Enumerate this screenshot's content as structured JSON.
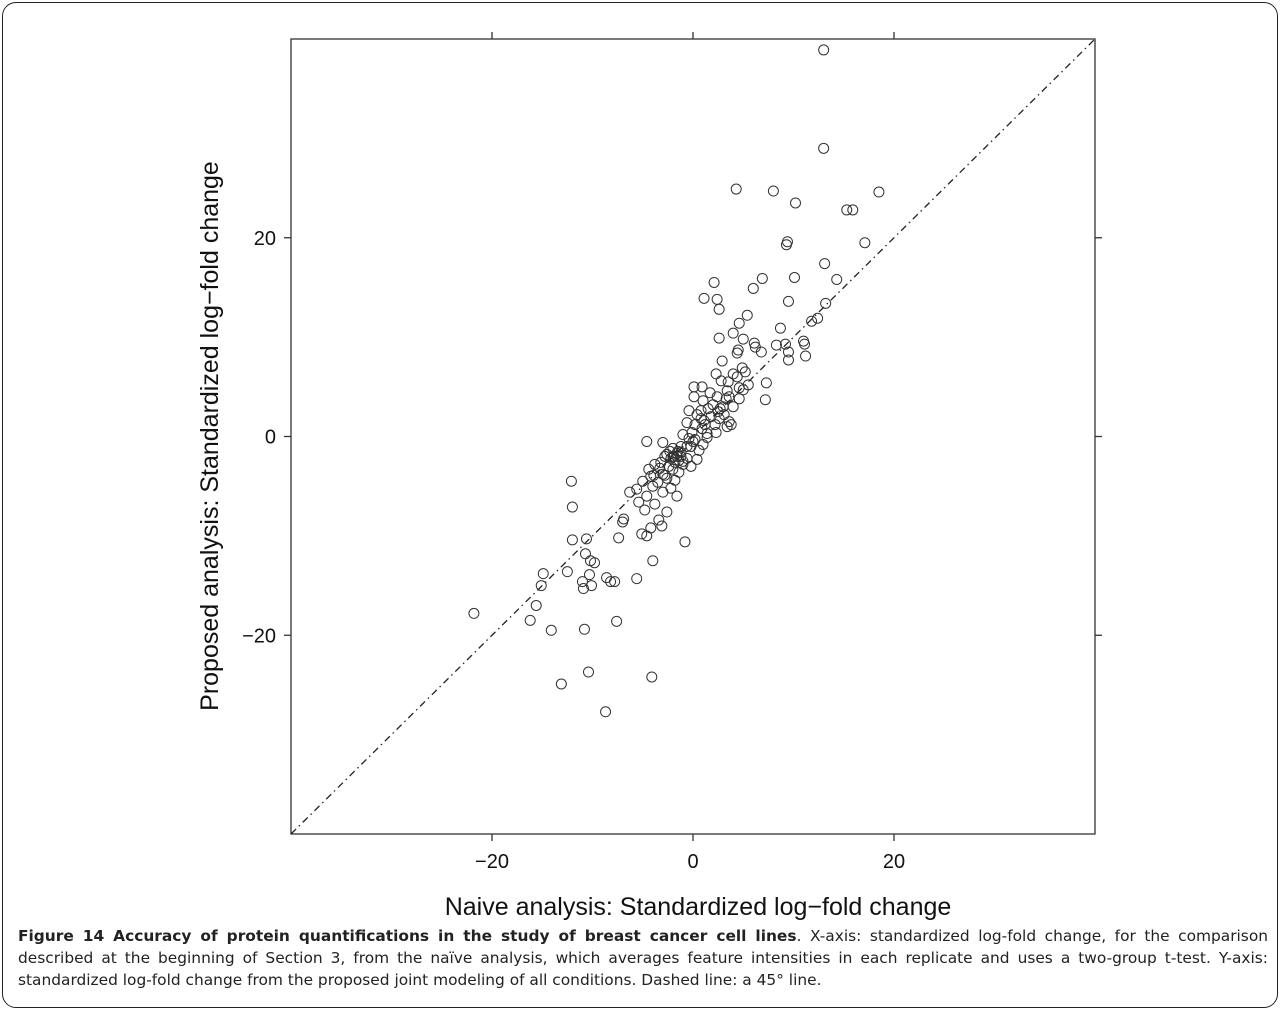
{
  "figure": {
    "caption_title": "Figure 14 Accuracy of protein quantifications in the study of breast cancer cell lines",
    "caption_body": ". X-axis: standardized log-fold change, for the comparison described at the beginning of Section 3, from the naïve analysis, which averages feature intensities in each replicate and uses a two-group t-test. Y-axis: standardized log-fold change from the proposed joint modeling of all conditions. Dashed line: a 45° line."
  },
  "chart_data": {
    "type": "scatter",
    "title": "",
    "xlabel": "Naive analysis:  Standardized log−fold change",
    "ylabel": "Proposed analysis:  Standardized log−fold change",
    "xlim": [
      -40,
      40
    ],
    "ylim": [
      -40,
      40
    ],
    "xticks": [
      -20,
      0,
      20
    ],
    "yticks": [
      -20,
      0,
      20
    ],
    "xtick_labels": [
      "−20",
      "0",
      "20"
    ],
    "ytick_labels": [
      "−20",
      "0",
      "20"
    ],
    "grid": false,
    "reference_line": {
      "slope": 1,
      "intercept": 0,
      "style": "dash-dot"
    },
    "marker": "open-circle",
    "points": [
      [
        13.0,
        38.9
      ],
      [
        13.0,
        29.0
      ],
      [
        4.3,
        24.9
      ],
      [
        8.0,
        24.7
      ],
      [
        18.5,
        24.6
      ],
      [
        10.2,
        23.5
      ],
      [
        15.3,
        22.8
      ],
      [
        15.9,
        22.8
      ],
      [
        9.3,
        19.3
      ],
      [
        9.4,
        19.6
      ],
      [
        17.1,
        19.5
      ],
      [
        13.1,
        17.4
      ],
      [
        2.1,
        15.5
      ],
      [
        6.9,
        15.9
      ],
      [
        10.1,
        16.0
      ],
      [
        14.3,
        15.8
      ],
      [
        6.0,
        14.9
      ],
      [
        1.1,
        13.9
      ],
      [
        2.4,
        13.8
      ],
      [
        9.5,
        13.6
      ],
      [
        2.6,
        12.8
      ],
      [
        13.2,
        13.4
      ],
      [
        5.4,
        12.2
      ],
      [
        4.6,
        11.4
      ],
      [
        12.4,
        11.9
      ],
      [
        11.8,
        11.6
      ],
      [
        4.0,
        10.4
      ],
      [
        8.7,
        10.9
      ],
      [
        9.2,
        9.3
      ],
      [
        11.0,
        9.6
      ],
      [
        11.1,
        9.3
      ],
      [
        6.1,
        9.4
      ],
      [
        8.3,
        9.2
      ],
      [
        2.6,
        9.9
      ],
      [
        5.0,
        9.8
      ],
      [
        4.5,
        8.7
      ],
      [
        4.4,
        8.4
      ],
      [
        6.2,
        9.0
      ],
      [
        6.8,
        8.5
      ],
      [
        9.5,
        8.5
      ],
      [
        9.5,
        7.7
      ],
      [
        11.2,
        8.1
      ],
      [
        2.9,
        7.6
      ],
      [
        4.9,
        6.9
      ],
      [
        4.0,
        6.3
      ],
      [
        2.3,
        6.3
      ],
      [
        4.4,
        6.0
      ],
      [
        2.8,
        5.6
      ],
      [
        5.2,
        6.5
      ],
      [
        3.5,
        5.5
      ],
      [
        5.5,
        5.2
      ],
      [
        7.3,
        5.4
      ],
      [
        4.6,
        4.9
      ],
      [
        3.4,
        4.6
      ],
      [
        5.0,
        4.7
      ],
      [
        2.4,
        4.0
      ],
      [
        3.6,
        4.0
      ],
      [
        4.6,
        3.8
      ],
      [
        7.2,
        3.7
      ],
      [
        0.9,
        5.0
      ],
      [
        1.7,
        4.4
      ],
      [
        0.1,
        5.0
      ],
      [
        0.1,
        4.0
      ],
      [
        1.0,
        3.6
      ],
      [
        2.0,
        3.2
      ],
      [
        3.0,
        3.0
      ],
      [
        2.5,
        2.5
      ],
      [
        1.5,
        2.8
      ],
      [
        0.8,
        2.6
      ],
      [
        -0.4,
        2.6
      ],
      [
        0.4,
        2.2
      ],
      [
        1.8,
        2.0
      ],
      [
        2.6,
        1.8
      ],
      [
        1.1,
        1.6
      ],
      [
        3.6,
        1.5
      ],
      [
        0.2,
        1.2
      ],
      [
        -0.6,
        1.4
      ],
      [
        0.9,
        0.8
      ],
      [
        -0.1,
        0.4
      ],
      [
        2.3,
        0.4
      ],
      [
        -1.0,
        0.2
      ],
      [
        -0.4,
        -0.2
      ],
      [
        0.2,
        -0.3
      ],
      [
        1.0,
        -0.8
      ],
      [
        3.4,
        1.0
      ],
      [
        3.8,
        1.2
      ],
      [
        -4.6,
        -0.5
      ],
      [
        -3.0,
        -0.6
      ],
      [
        -1.2,
        -1.0
      ],
      [
        -2.0,
        -1.2
      ],
      [
        -0.2,
        -1.0
      ],
      [
        0.6,
        -1.4
      ],
      [
        -2.6,
        -1.8
      ],
      [
        -1.6,
        -1.7
      ],
      [
        -1.2,
        -2.0
      ],
      [
        -2.2,
        -2.2
      ],
      [
        -1.4,
        -2.4
      ],
      [
        -0.6,
        -2.2
      ],
      [
        0.4,
        -2.3
      ],
      [
        -1.8,
        -2.6
      ],
      [
        -1.0,
        -2.8
      ],
      [
        -2.4,
        -3.0
      ],
      [
        -3.2,
        -2.6
      ],
      [
        -3.8,
        -2.8
      ],
      [
        -0.2,
        -3.0
      ],
      [
        -2.0,
        -3.3
      ],
      [
        -4.4,
        -3.3
      ],
      [
        -1.4,
        -3.6
      ],
      [
        -3.0,
        -3.8
      ],
      [
        -2.6,
        -4.2
      ],
      [
        -4.2,
        -4.0
      ],
      [
        -1.8,
        -4.4
      ],
      [
        -3.5,
        -4.6
      ],
      [
        -5.0,
        -4.5
      ],
      [
        -4.0,
        -5.0
      ],
      [
        -2.2,
        -5.2
      ],
      [
        -5.6,
        -5.3
      ],
      [
        -3.0,
        -5.6
      ],
      [
        -1.6,
        -6.0
      ],
      [
        -4.6,
        -6.0
      ],
      [
        -5.4,
        -6.6
      ],
      [
        -6.3,
        -5.6
      ],
      [
        -3.8,
        -6.8
      ],
      [
        -4.8,
        -7.4
      ],
      [
        -2.6,
        -7.6
      ],
      [
        -3.4,
        -8.4
      ],
      [
        -6.9,
        -8.3
      ],
      [
        -7.0,
        -8.6
      ],
      [
        -3.1,
        -9.0
      ],
      [
        -4.2,
        -9.2
      ],
      [
        -5.1,
        -9.8
      ],
      [
        -4.6,
        -10.0
      ],
      [
        -7.4,
        -10.2
      ],
      [
        -0.8,
        -10.6
      ],
      [
        -12.0,
        -10.4
      ],
      [
        -10.6,
        -10.3
      ],
      [
        -12.0,
        -7.1
      ],
      [
        -12.1,
        -4.5
      ],
      [
        -10.7,
        -11.8
      ],
      [
        -10.2,
        -12.5
      ],
      [
        -4.0,
        -12.5
      ],
      [
        -9.8,
        -12.7
      ],
      [
        -10.3,
        -13.9
      ],
      [
        -12.5,
        -13.6
      ],
      [
        -14.9,
        -13.8
      ],
      [
        -11.0,
        -14.6
      ],
      [
        -8.6,
        -14.2
      ],
      [
        -8.2,
        -14.6
      ],
      [
        -7.8,
        -14.6
      ],
      [
        -10.9,
        -15.3
      ],
      [
        -10.1,
        -15.0
      ],
      [
        -15.1,
        -15.0
      ],
      [
        -5.6,
        -14.3
      ],
      [
        -15.6,
        -17.0
      ],
      [
        -21.8,
        -17.8
      ],
      [
        -16.2,
        -18.5
      ],
      [
        -7.6,
        -18.6
      ],
      [
        -14.1,
        -19.5
      ],
      [
        -10.8,
        -19.4
      ],
      [
        -10.4,
        -23.7
      ],
      [
        -4.1,
        -24.2
      ],
      [
        -13.1,
        -24.9
      ],
      [
        -8.7,
        -27.7
      ],
      [
        -1.2,
        -1.6
      ],
      [
        -1.6,
        -2.0
      ],
      [
        -2.3,
        -1.5
      ],
      [
        0.0,
        -0.5
      ],
      [
        1.4,
        0.3
      ],
      [
        2.2,
        1.2
      ],
      [
        3.1,
        2.2
      ],
      [
        4.0,
        3.0
      ],
      [
        1.4,
        -0.1
      ],
      [
        -0.6,
        -1.0
      ],
      [
        -1.9,
        -2.0
      ],
      [
        -3.3,
        -3.2
      ],
      [
        -2.8,
        -3.9
      ],
      [
        -3.9,
        -3.9
      ],
      [
        -2.0,
        -2.0
      ],
      [
        -1.5,
        -1.5
      ],
      [
        -2.8,
        -2.0
      ],
      [
        -1.0,
        -2.5
      ],
      [
        0.8,
        1.8
      ],
      [
        1.2,
        1.2
      ],
      [
        2.7,
        2.8
      ],
      [
        3.3,
        3.8
      ]
    ]
  }
}
